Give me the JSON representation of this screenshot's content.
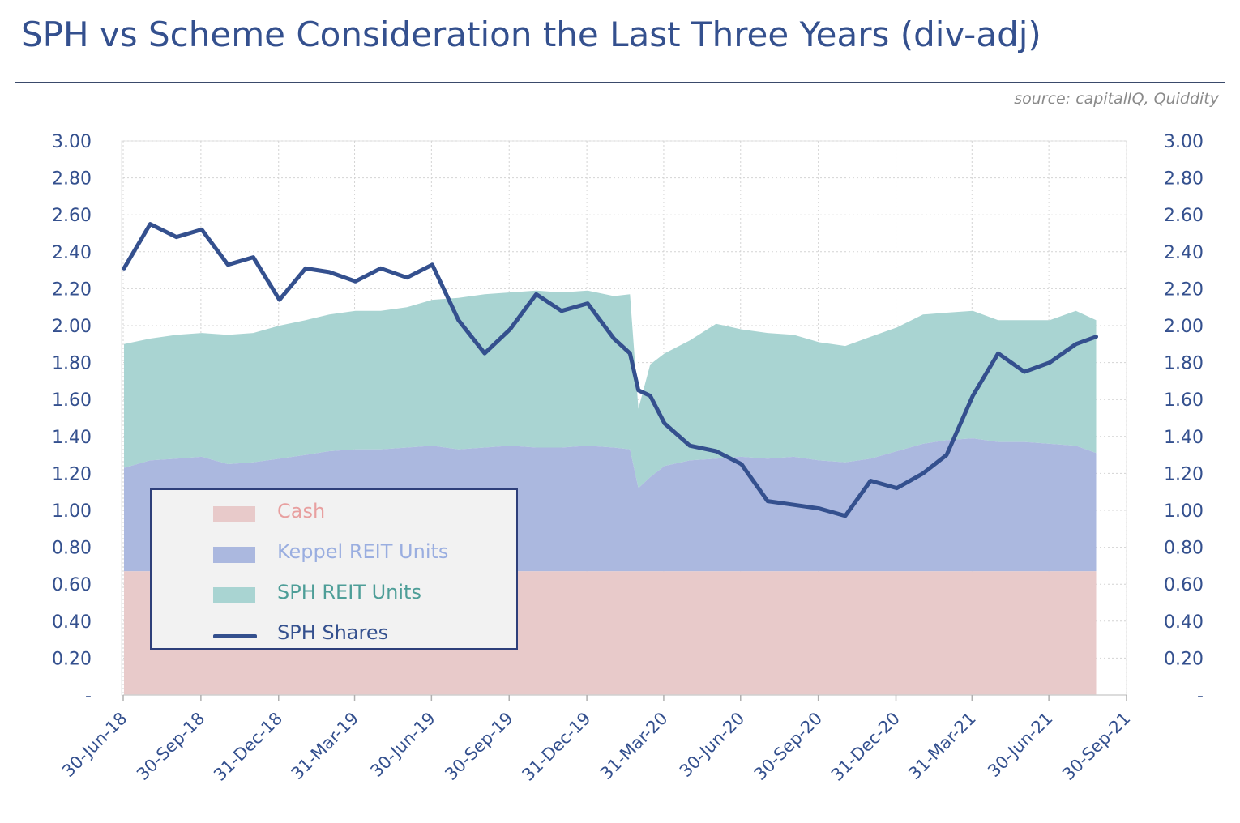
{
  "title": "SPH vs Scheme Consideration the Last Three Years (div-adj)",
  "source": "source: capitalIQ, Quiddity",
  "colors": {
    "cash": "#e8caca",
    "keppel": "#abb8df",
    "sph_reit": "#a9d4d2",
    "sph_shares": "#34508e",
    "text": "#34508e"
  },
  "legend": [
    {
      "label": "Cash",
      "color": "#e8a0a0"
    },
    {
      "label": "Keppel REIT Units",
      "color": "#9aaee0"
    },
    {
      "label": "SPH REIT Units",
      "color": "#4e9e98"
    },
    {
      "label": "SPH Shares",
      "color": "#34508e"
    }
  ],
  "chart_data": {
    "type": "area",
    "title": "SPH vs Scheme Consideration the Last Three Years (div-adj)",
    "xlabel": "",
    "ylabel": "",
    "ylim": [
      0,
      3
    ],
    "grid": true,
    "legend_position": "bottom-left",
    "y_ticks": [
      "-",
      "0.20",
      "0.40",
      "0.60",
      "0.80",
      "1.00",
      "1.20",
      "1.40",
      "1.60",
      "1.80",
      "2.00",
      "2.20",
      "2.40",
      "2.60",
      "2.80",
      "3.00"
    ],
    "x_ticks": [
      "30-Jun-18",
      "30-Sep-18",
      "31-Dec-18",
      "31-Mar-19",
      "30-Jun-19",
      "30-Sep-19",
      "31-Dec-19",
      "31-Mar-20",
      "30-Jun-20",
      "30-Sep-20",
      "31-Dec-20",
      "31-Mar-21",
      "30-Jun-21",
      "30-Sep-21"
    ],
    "x": [
      "2018-07-01",
      "2018-08-01",
      "2018-09-01",
      "2018-10-01",
      "2018-11-01",
      "2018-12-01",
      "2019-01-01",
      "2019-02-01",
      "2019-03-01",
      "2019-04-01",
      "2019-05-01",
      "2019-06-01",
      "2019-07-01",
      "2019-08-01",
      "2019-09-01",
      "2019-10-01",
      "2019-11-01",
      "2019-12-01",
      "2020-01-01",
      "2020-02-01",
      "2020-02-20",
      "2020-03-01",
      "2020-03-15",
      "2020-04-01",
      "2020-05-01",
      "2020-06-01",
      "2020-07-01",
      "2020-08-01",
      "2020-09-01",
      "2020-10-01",
      "2020-11-01",
      "2020-12-01",
      "2021-01-01",
      "2021-02-01",
      "2021-03-01",
      "2021-04-01",
      "2021-05-01",
      "2021-06-01",
      "2021-07-01",
      "2021-08-01",
      "2021-08-25"
    ],
    "series": [
      {
        "name": "Cash",
        "values": [
          0.67,
          0.67,
          0.67,
          0.67,
          0.67,
          0.67,
          0.67,
          0.67,
          0.67,
          0.67,
          0.67,
          0.67,
          0.67,
          0.67,
          0.67,
          0.67,
          0.67,
          0.67,
          0.67,
          0.67,
          0.67,
          0.67,
          0.67,
          0.67,
          0.67,
          0.67,
          0.67,
          0.67,
          0.67,
          0.67,
          0.67,
          0.67,
          0.67,
          0.67,
          0.67,
          0.67,
          0.67,
          0.67,
          0.67,
          0.67,
          0.67
        ]
      },
      {
        "name": "Keppel REIT Units",
        "values": [
          0.56,
          0.6,
          0.61,
          0.62,
          0.58,
          0.59,
          0.61,
          0.63,
          0.65,
          0.66,
          0.66,
          0.67,
          0.68,
          0.66,
          0.67,
          0.68,
          0.67,
          0.67,
          0.68,
          0.67,
          0.66,
          0.45,
          0.51,
          0.57,
          0.6,
          0.61,
          0.62,
          0.61,
          0.62,
          0.6,
          0.59,
          0.61,
          0.65,
          0.69,
          0.71,
          0.72,
          0.7,
          0.7,
          0.69,
          0.68,
          0.64
        ]
      },
      {
        "name": "SPH REIT Units",
        "values": [
          0.67,
          0.66,
          0.67,
          0.67,
          0.7,
          0.7,
          0.72,
          0.73,
          0.74,
          0.75,
          0.75,
          0.76,
          0.79,
          0.82,
          0.83,
          0.83,
          0.85,
          0.84,
          0.84,
          0.82,
          0.84,
          0.43,
          0.61,
          0.61,
          0.65,
          0.73,
          0.69,
          0.68,
          0.66,
          0.64,
          0.63,
          0.66,
          0.67,
          0.7,
          0.69,
          0.69,
          0.66,
          0.66,
          0.67,
          0.73,
          0.72
        ]
      },
      {
        "name": "SPH Shares",
        "values": [
          2.31,
          2.55,
          2.48,
          2.52,
          2.33,
          2.37,
          2.14,
          2.31,
          2.29,
          2.24,
          2.31,
          2.26,
          2.33,
          2.03,
          1.85,
          1.98,
          2.17,
          2.08,
          2.12,
          1.93,
          1.85,
          1.65,
          1.62,
          1.47,
          1.35,
          1.32,
          1.25,
          1.05,
          1.03,
          1.01,
          0.97,
          1.16,
          1.12,
          1.2,
          1.3,
          1.62,
          1.85,
          1.75,
          1.8,
          1.9,
          1.94
        ]
      }
    ]
  }
}
